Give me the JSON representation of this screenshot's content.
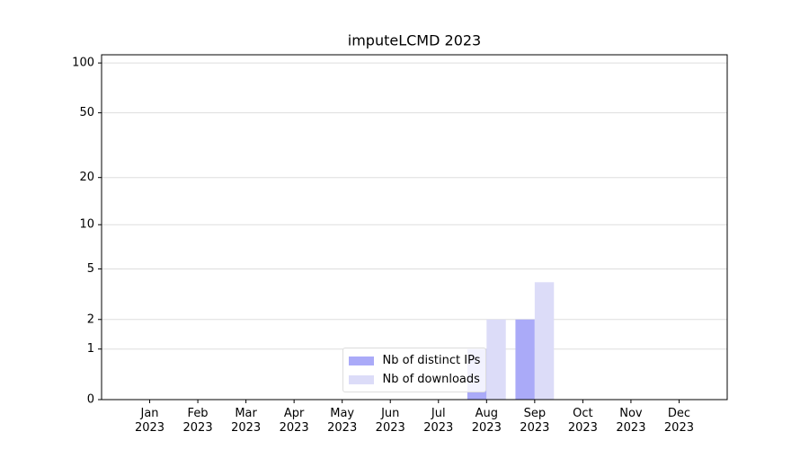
{
  "chart_data": {
    "type": "bar",
    "title": "imputeLCMD 2023",
    "categories": [
      "Jan 2023",
      "Feb 2023",
      "Mar 2023",
      "Apr 2023",
      "May 2023",
      "Jun 2023",
      "Jul 2023",
      "Aug 2023",
      "Sep 2023",
      "Oct 2023",
      "Nov 2023",
      "Dec 2023"
    ],
    "series": [
      {
        "name": "Nb of distinct IPs",
        "color": "#aaaaf8",
        "values": [
          0,
          0,
          0,
          0,
          0,
          0,
          0,
          1,
          2,
          0,
          0,
          0
        ]
      },
      {
        "name": "Nb of downloads",
        "color": "#dcdcf8",
        "values": [
          0,
          0,
          0,
          0,
          0,
          0,
          0,
          2,
          4,
          0,
          0,
          0
        ]
      }
    ],
    "yscale": "log1p",
    "ylim": [
      0,
      112
    ],
    "yticks": [
      0,
      1,
      2,
      5,
      10,
      20,
      50,
      100
    ],
    "grid": true,
    "legend": "lower center"
  }
}
